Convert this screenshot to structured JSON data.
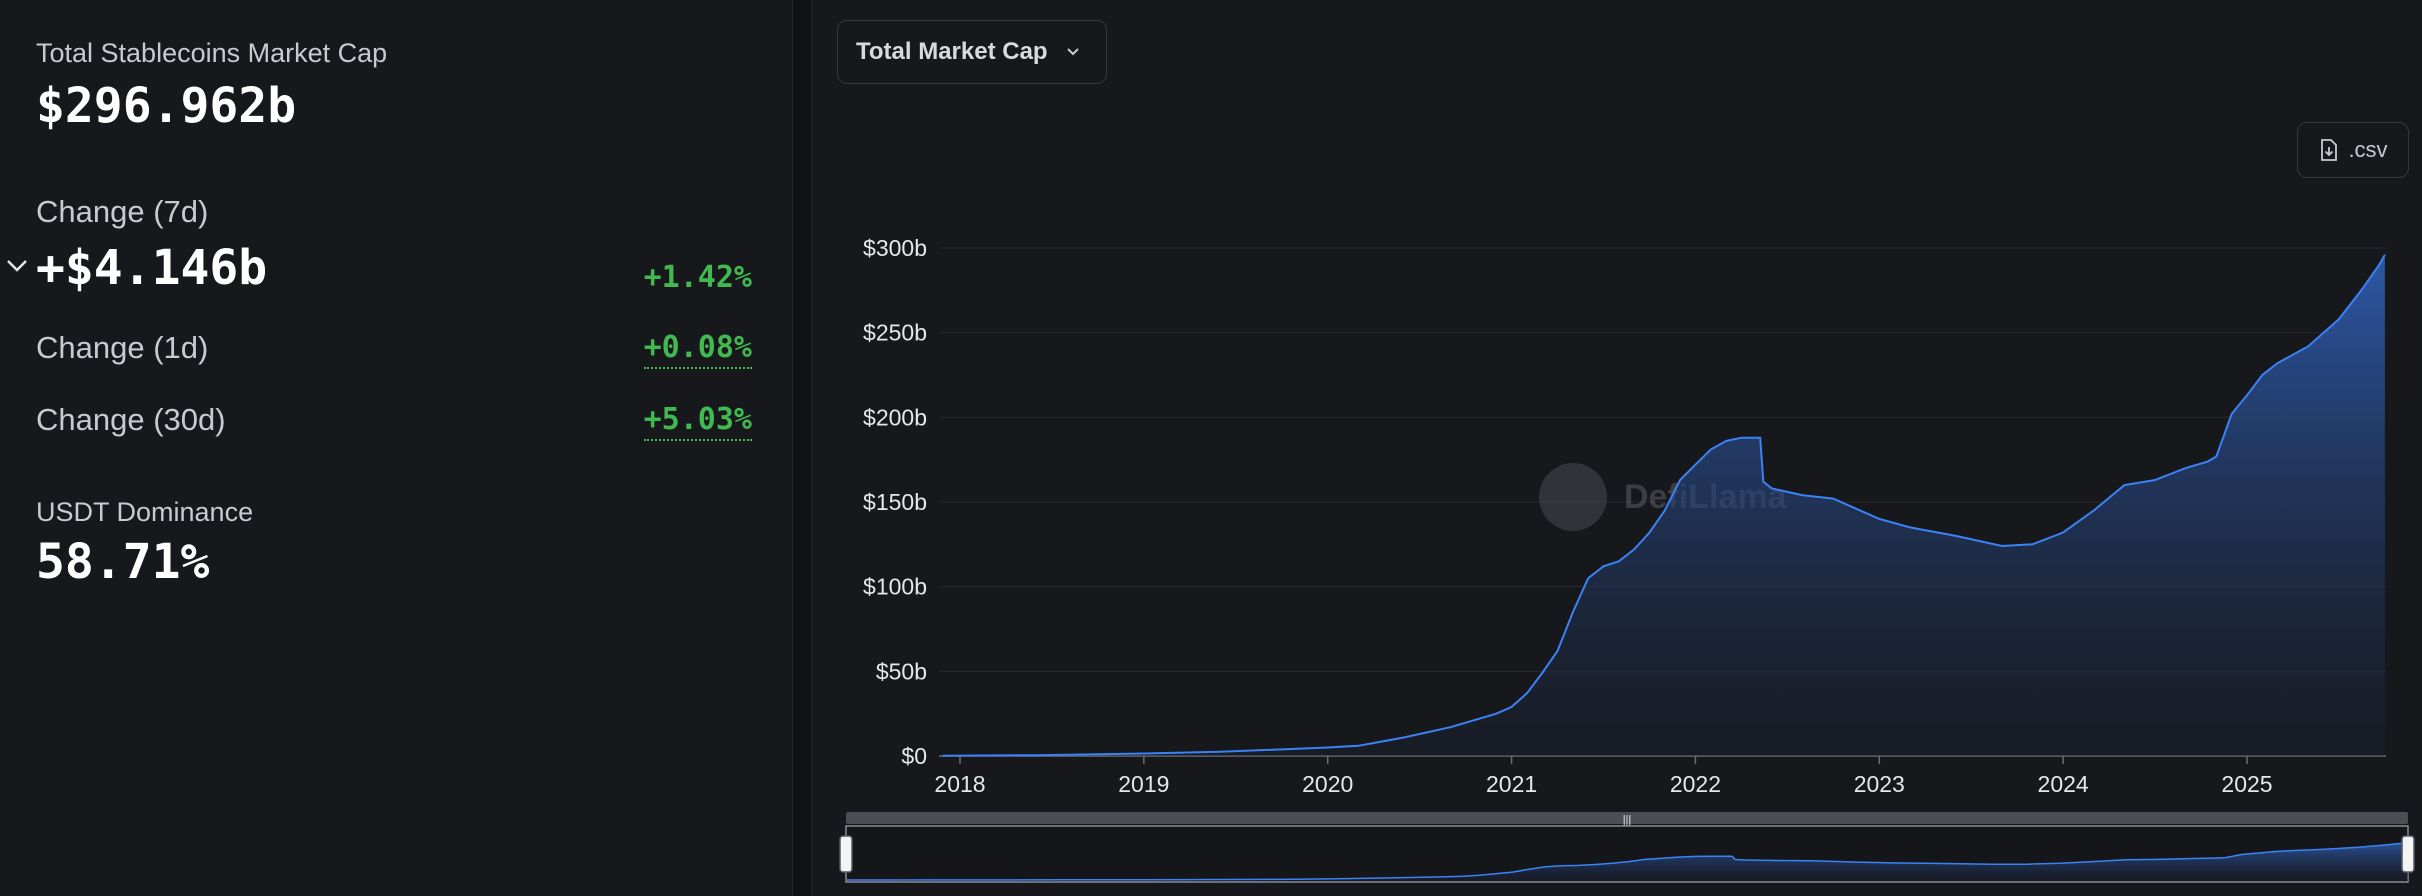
{
  "stats": {
    "total_label": "Total Stablecoins Market Cap",
    "total_value": "$296.962b",
    "change7d_label": "Change (7d)",
    "change7d_value": "+$4.146b",
    "change7d_pct": "+1.42%",
    "change1d_label": "Change (1d)",
    "change1d_pct": "+0.08%",
    "change30d_label": "Change (30d)",
    "change30d_pct": "+5.03%",
    "dominance_label": "USDT Dominance",
    "dominance_value": "58.71%"
  },
  "controls": {
    "metric_select": "Total Market Cap",
    "csv_label": ".csv"
  },
  "watermark": "DefiLlama",
  "colors": {
    "accent": "#3b82f6",
    "positive": "#3fb950",
    "background": "#17181b"
  },
  "chart_data": {
    "type": "area",
    "xlabel": "",
    "ylabel": "",
    "ylim": [
      0,
      300
    ],
    "y_unit": "$ billions",
    "x_ticks": [
      "2018",
      "2019",
      "2020",
      "2021",
      "2022",
      "2023",
      "2024",
      "2025"
    ],
    "y_ticks": [
      "$0",
      "$50b",
      "$100b",
      "$150b",
      "$200b",
      "$250b",
      "$300b"
    ],
    "grid": "horizontal",
    "series": [
      {
        "values": [
          [
            "2017-11-27",
            0.2
          ],
          [
            "2018-06-01",
            0.5
          ],
          [
            "2019-01-01",
            1.5
          ],
          [
            "2019-06-01",
            2.5
          ],
          [
            "2020-01-01",
            5
          ],
          [
            "2020-03-01",
            6
          ],
          [
            "2020-06-01",
            11
          ],
          [
            "2020-09-01",
            17
          ],
          [
            "2020-12-01",
            25
          ],
          [
            "2021-01-01",
            29
          ],
          [
            "2021-02-01",
            37
          ],
          [
            "2021-03-01",
            49
          ],
          [
            "2021-04-01",
            62
          ],
          [
            "2021-05-01",
            85
          ],
          [
            "2021-06-01",
            105
          ],
          [
            "2021-07-01",
            112
          ],
          [
            "2021-08-01",
            115
          ],
          [
            "2021-09-01",
            122
          ],
          [
            "2021-10-01",
            132
          ],
          [
            "2021-11-01",
            145
          ],
          [
            "2021-12-01",
            163
          ],
          [
            "2022-01-01",
            172
          ],
          [
            "2022-02-01",
            181
          ],
          [
            "2022-03-01",
            186
          ],
          [
            "2022-04-01",
            188
          ],
          [
            "2022-05-08",
            188
          ],
          [
            "2022-05-14",
            162
          ],
          [
            "2022-06-01",
            158
          ],
          [
            "2022-08-01",
            154
          ],
          [
            "2022-10-01",
            152
          ],
          [
            "2022-12-01",
            144
          ],
          [
            "2023-01-01",
            140
          ],
          [
            "2023-03-01",
            135
          ],
          [
            "2023-06-01",
            130
          ],
          [
            "2023-09-01",
            124
          ],
          [
            "2023-11-01",
            125
          ],
          [
            "2024-01-01",
            132
          ],
          [
            "2024-03-01",
            145
          ],
          [
            "2024-05-01",
            160
          ],
          [
            "2024-07-01",
            163
          ],
          [
            "2024-09-01",
            170
          ],
          [
            "2024-10-15",
            174
          ],
          [
            "2024-11-01",
            177
          ],
          [
            "2024-12-01",
            202
          ],
          [
            "2025-01-01",
            213
          ],
          [
            "2025-02-01",
            225
          ],
          [
            "2025-03-01",
            232
          ],
          [
            "2025-05-01",
            242
          ],
          [
            "2025-07-01",
            258
          ],
          [
            "2025-08-15",
            275
          ],
          [
            "2025-09-20",
            290
          ],
          [
            "2025-10-01",
            296
          ]
        ]
      }
    ]
  }
}
